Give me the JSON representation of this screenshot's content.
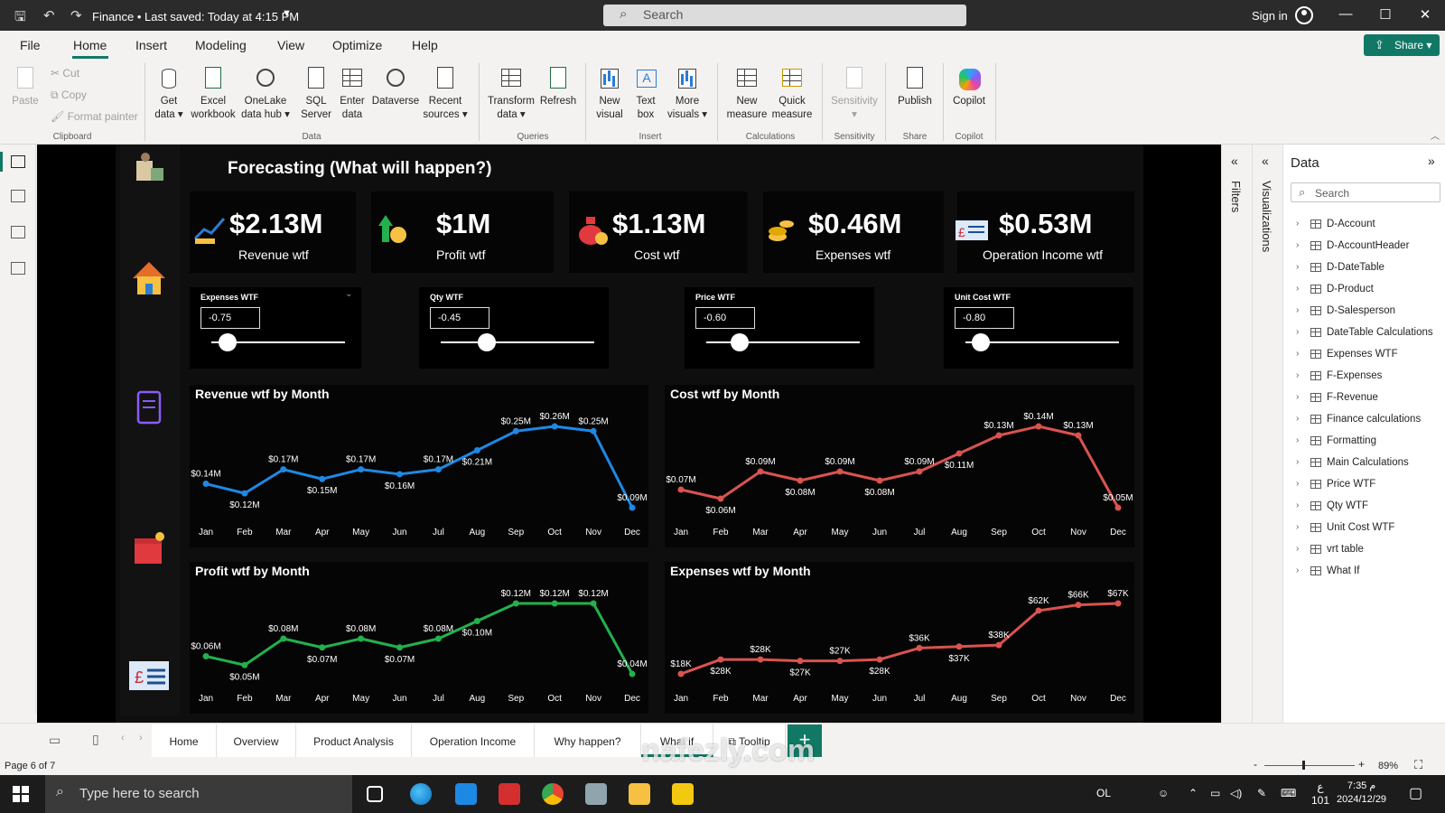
{
  "titlebar": {
    "doc_name": "Finance",
    "saved_status": "Last saved: Today at 4:15 PM",
    "search_placeholder": "Search",
    "sign_in": "Sign in"
  },
  "ribbon_tabs": [
    "File",
    "Home",
    "Insert",
    "Modeling",
    "View",
    "Optimize",
    "Help"
  ],
  "share_label": "Share",
  "ribbon": {
    "clipboard": {
      "paste": "Paste",
      "cut": "Cut",
      "copy": "Copy",
      "format_painter": "Format painter",
      "group": "Clipboard"
    },
    "data": {
      "get_data": [
        "Get",
        "data"
      ],
      "excel": [
        "Excel",
        "workbook"
      ],
      "onelake": [
        "OneLake",
        "data hub"
      ],
      "sql": [
        "SQL",
        "Server"
      ],
      "enter": [
        "Enter",
        "data"
      ],
      "dataverse": [
        "Dataverse",
        ""
      ],
      "recent": [
        "Recent",
        "sources"
      ],
      "group": "Data"
    },
    "queries": {
      "transform": [
        "Transform",
        "data"
      ],
      "refresh": [
        "Refresh",
        ""
      ],
      "group": "Queries"
    },
    "insert": {
      "new_visual": [
        "New",
        "visual"
      ],
      "text_box": [
        "Text",
        "box"
      ],
      "more_visuals": [
        "More",
        "visuals"
      ],
      "group": "Insert"
    },
    "calculations": {
      "new_measure": [
        "New",
        "measure"
      ],
      "quick_measure": [
        "Quick",
        "measure"
      ],
      "group": "Calculations"
    },
    "sensitivity": {
      "label": "Sensitivity",
      "group": "Sensitivity"
    },
    "share": {
      "publish": "Publish",
      "group": "Share"
    },
    "copilot": {
      "label": "Copilot",
      "group": "Copilot"
    }
  },
  "report": {
    "title": "Forecasting (What will happen?)",
    "kpis": [
      {
        "value": "$2.13M",
        "label": "Revenue wtf"
      },
      {
        "value": "$1M",
        "label": "Profit wtf"
      },
      {
        "value": "$1.13M",
        "label": "Cost wtf"
      },
      {
        "value": "$0.46M",
        "label": "Expenses wtf"
      },
      {
        "value": "$0.53M",
        "label": "Operation Income wtf"
      }
    ],
    "slicers": [
      {
        "title": "Expenses WTF",
        "value": "-0.75",
        "position": 0.12
      },
      {
        "title": "Qty WTF",
        "value": "-0.45",
        "position": 0.3
      },
      {
        "title": "Price WTF",
        "value": "-0.60",
        "position": 0.22
      },
      {
        "title": "Unit Cost WTF",
        "value": "-0.80",
        "position": 0.1
      }
    ]
  },
  "chart_data": [
    {
      "type": "line",
      "title": "Revenue wtf by Month",
      "categories": [
        "Jan",
        "Feb",
        "Mar",
        "Apr",
        "May",
        "Jun",
        "Jul",
        "Aug",
        "Sep",
        "Oct",
        "Nov",
        "Dec"
      ],
      "values": [
        0.14,
        0.12,
        0.17,
        0.15,
        0.17,
        0.16,
        0.17,
        0.21,
        0.25,
        0.26,
        0.25,
        0.09
      ],
      "labels": [
        "$0.14M",
        "$0.12M",
        "$0.17M",
        "$0.15M",
        "$0.17M",
        "$0.16M",
        "$0.17M",
        "$0.21M",
        "$0.25M",
        "$0.26M",
        "$0.25M",
        "$0.09M"
      ],
      "color": "#1e88e5"
    },
    {
      "type": "line",
      "title": "Cost wtf by Month",
      "categories": [
        "Jan",
        "Feb",
        "Mar",
        "Apr",
        "May",
        "Jun",
        "Jul",
        "Aug",
        "Sep",
        "Oct",
        "Nov",
        "Dec"
      ],
      "values": [
        0.07,
        0.06,
        0.09,
        0.08,
        0.09,
        0.08,
        0.09,
        0.11,
        0.13,
        0.14,
        0.13,
        0.05
      ],
      "labels": [
        "$0.07M",
        "$0.06M",
        "$0.09M",
        "$0.08M",
        "$0.09M",
        "$0.08M",
        "$0.09M",
        "$0.11M",
        "$0.13M",
        "$0.14M",
        "$0.13M",
        "$0.05M"
      ],
      "color": "#d9534f"
    },
    {
      "type": "line",
      "title": "Profit wtf by Month",
      "categories": [
        "Jan",
        "Feb",
        "Mar",
        "Apr",
        "May",
        "Jun",
        "Jul",
        "Aug",
        "Sep",
        "Oct",
        "Nov",
        "Dec"
      ],
      "values": [
        0.06,
        0.05,
        0.08,
        0.07,
        0.08,
        0.07,
        0.08,
        0.1,
        0.12,
        0.12,
        0.12,
        0.04
      ],
      "labels": [
        "$0.06M",
        "$0.05M",
        "$0.08M",
        "$0.07M",
        "$0.08M",
        "$0.07M",
        "$0.08M",
        "$0.10M",
        "$0.12M",
        "$0.12M",
        "$0.12M",
        "$0.04M"
      ],
      "color": "#22b14c"
    },
    {
      "type": "line",
      "title": "Expenses wtf by Month",
      "categories": [
        "Jan",
        "Feb",
        "Mar",
        "Apr",
        "May",
        "Jun",
        "Jul",
        "Aug",
        "Sep",
        "Oct",
        "Nov",
        "Dec"
      ],
      "values": [
        18,
        28,
        28,
        27,
        27,
        28,
        36,
        37,
        38,
        62,
        66,
        67
      ],
      "labels": [
        "$18K",
        "$28K",
        "$28K",
        "$27K",
        "$27K",
        "$28K",
        "$36K",
        "$37K",
        "$38K",
        "$62K",
        "$66K",
        "$67K"
      ],
      "color": "#d9534f"
    }
  ],
  "panes": {
    "filters": "Filters",
    "visualizations": "Visualizations",
    "data_title": "Data",
    "data_search_placeholder": "Search",
    "tables": [
      "D-Account",
      "D-AccountHeader",
      "D-DateTable",
      "D-Product",
      "D-Salesperson",
      "DateTable Calculations",
      "Expenses WTF",
      "F-Expenses",
      "F-Revenue",
      "Finance calculations",
      "Formatting",
      "Main Calculations",
      "Price WTF",
      "Qty WTF",
      "Unit Cost WTF",
      "vrt table",
      "What If"
    ]
  },
  "page_tabs": [
    "Home",
    "Overview",
    "Product Analysis",
    "Operation Income",
    "Why happen?",
    "What if",
    "Tooltip"
  ],
  "status": {
    "page": "Page 6 of 7",
    "zoom": "89%"
  },
  "taskbar": {
    "search_placeholder": "Type here to search",
    "lang": "OL",
    "time": "7:35 م",
    "date": "2024/12/29",
    "ime": "ع",
    "ime_num": "101"
  },
  "watermark": "nafezly.com"
}
